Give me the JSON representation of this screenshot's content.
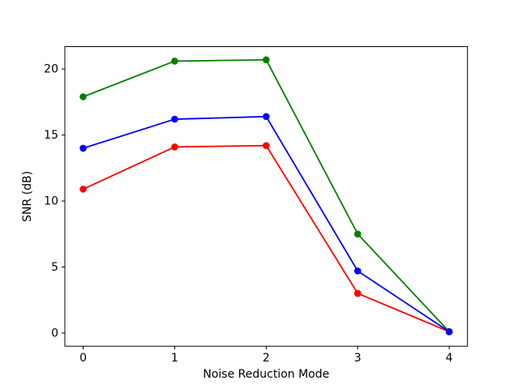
{
  "figure": {
    "background": "#ffffff",
    "frame_color": "#000000"
  },
  "chart_data": {
    "type": "line",
    "xlabel": "Noise Reduction Mode",
    "ylabel": "SNR (dB)",
    "x": [
      0,
      1,
      2,
      3,
      4
    ],
    "x_tick_labels": [
      "0",
      "1",
      "2",
      "3",
      "4"
    ],
    "y_ticks": [
      0,
      5,
      10,
      15,
      20
    ],
    "y_tick_labels": [
      "0",
      "5",
      "10",
      "15",
      "20"
    ],
    "xlim": [
      -0.2,
      4.2
    ],
    "ylim": [
      -1.0,
      21.7
    ],
    "grid": false,
    "legend_position": "none",
    "marker": "circle",
    "series": [
      {
        "name": "green-series",
        "color": "#008000",
        "values": [
          17.9,
          20.6,
          20.7,
          7.5,
          0.1
        ]
      },
      {
        "name": "red-series",
        "color": "#ff0000",
        "values": [
          10.9,
          14.1,
          14.2,
          3.0,
          0.1
        ]
      },
      {
        "name": "blue-series",
        "color": "#0000ff",
        "values": [
          14.0,
          16.2,
          16.4,
          4.7,
          0.1
        ]
      }
    ]
  }
}
